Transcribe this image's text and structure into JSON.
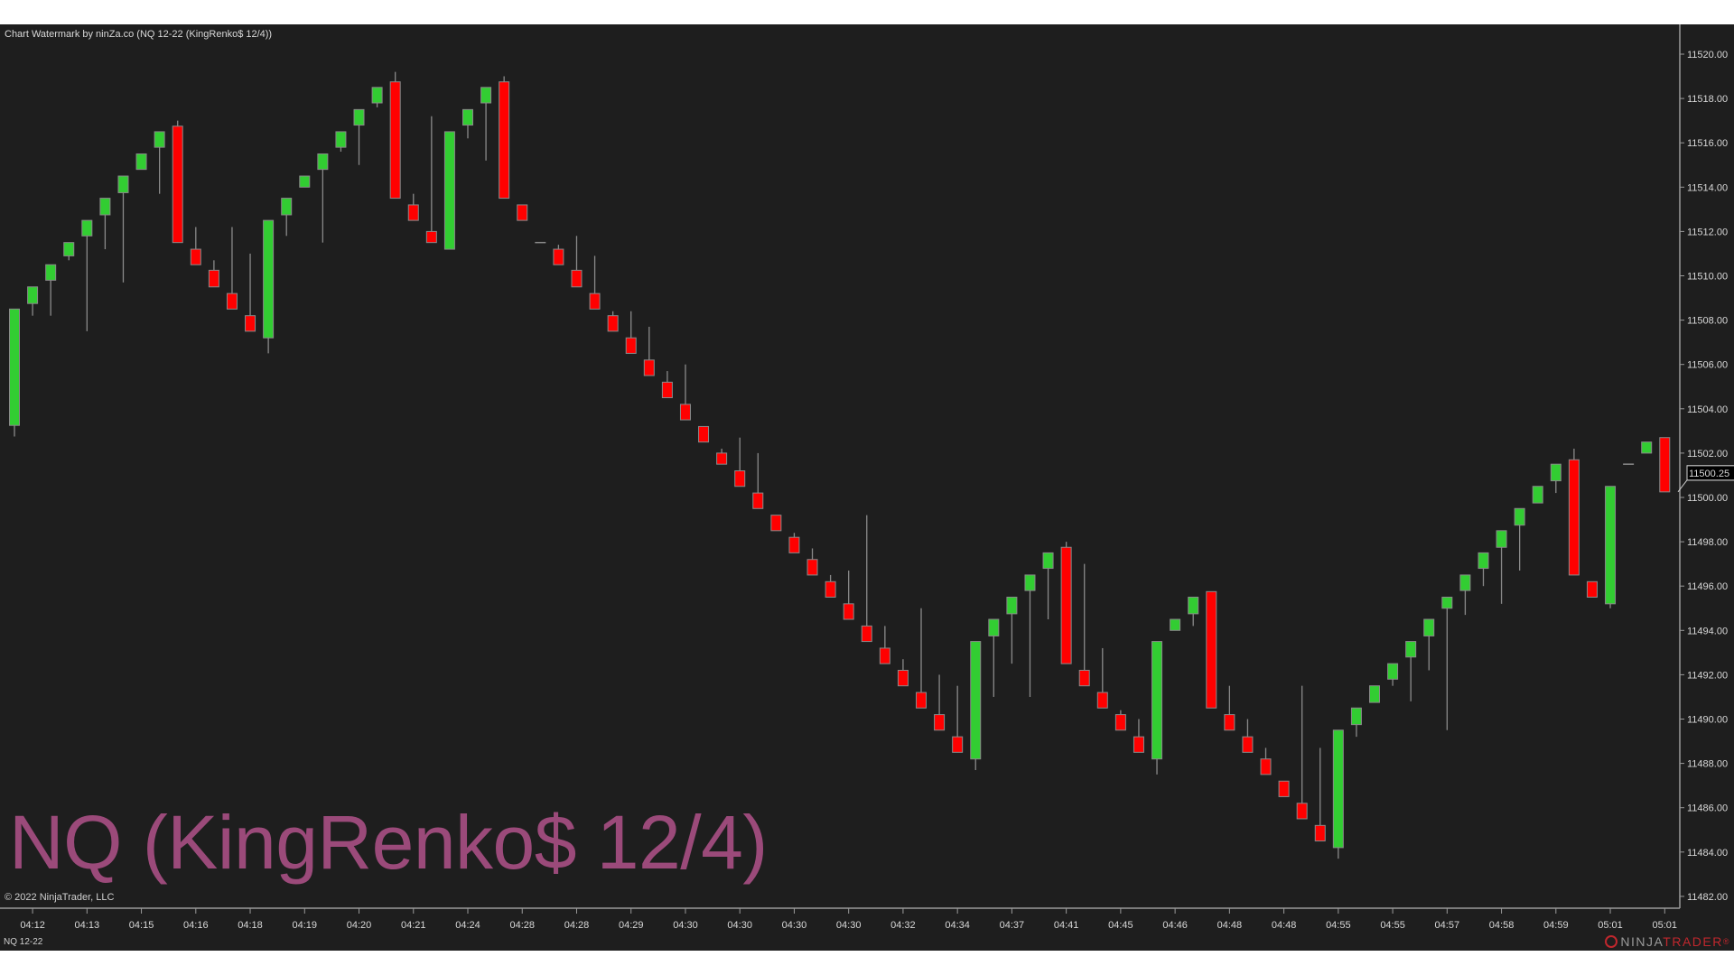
{
  "window": {
    "title": "Chart Watermark by ninZa.co (NQ 12-22 (KingRenko$ 12/4))"
  },
  "watermark": {
    "text": "NQ (KingRenko$ 12/4)",
    "color": "#9b4a7a"
  },
  "footer": {
    "copyright": "© 2022 NinjaTrader, LLC",
    "instrument": "NQ 12-22",
    "logo_left": "NINJA",
    "logo_right": "TRADER",
    "logo_reg": "®"
  },
  "colors": {
    "background": "#1e1e1e",
    "up": "#32cd32",
    "down": "#ff0000",
    "wick": "#8a8a8a"
  },
  "chart_data": {
    "type": "candlestick",
    "price_axis": {
      "ticks": [
        "11520.00",
        "11518.00",
        "11516.00",
        "11514.00",
        "11512.00",
        "11510.00",
        "11508.00",
        "11506.00",
        "11504.00",
        "11502.00",
        "11500.00",
        "11498.00",
        "11496.00",
        "11494.00",
        "11492.00",
        "11490.00",
        "11488.00",
        "11486.00",
        "11484.00",
        "11482.00"
      ],
      "range": [
        11481.5,
        11521.5
      ]
    },
    "current_price": "11500.25",
    "time_labels": [
      "04:12",
      "04:13",
      "04:15",
      "04:16",
      "04:18",
      "04:19",
      "04:20",
      "04:21",
      "04:24",
      "04:28",
      "04:28",
      "04:29",
      "04:30",
      "04:30",
      "04:30",
      "04:30",
      "04:32",
      "04:34",
      "04:37",
      "04:41",
      "04:45",
      "04:46",
      "04:48",
      "04:48",
      "04:55",
      "04:55",
      "04:57",
      "04:58",
      "04:59",
      "05:01",
      "05:01"
    ],
    "candles_ohlc": [
      [
        11503.25,
        11508.5,
        11502.75,
        11508.5
      ],
      [
        11508.75,
        11509.5,
        11508.2,
        11509.5
      ],
      [
        11509.8,
        11510.5,
        11508.2,
        11510.5
      ],
      [
        11510.9,
        11511.5,
        11510.7,
        11511.5
      ],
      [
        11511.8,
        11512.5,
        11507.5,
        11512.5
      ],
      [
        11512.75,
        11513.5,
        11511.2,
        11513.5
      ],
      [
        11513.75,
        11514.5,
        11509.7,
        11514.5
      ],
      [
        11514.8,
        11515.5,
        11514.8,
        11515.5
      ],
      [
        11515.8,
        11516.5,
        11513.7,
        11516.5
      ],
      [
        11516.75,
        11517,
        11511.5,
        11511.5
      ],
      [
        11511.2,
        11512.2,
        11510.5,
        11510.5
      ],
      [
        11510.25,
        11510.7,
        11509.5,
        11509.5
      ],
      [
        11509.2,
        11512.2,
        11508.5,
        11508.5
      ],
      [
        11508.2,
        11511,
        11507.5,
        11507.5
      ],
      [
        11507.2,
        11512.5,
        11506.5,
        11512.5
      ],
      [
        11512.75,
        11513.5,
        11511.8,
        11513.5
      ],
      [
        11514,
        11514.5,
        11514,
        11514.5
      ],
      [
        11514.8,
        11515.5,
        11511.5,
        11515.5
      ],
      [
        11515.8,
        11516.5,
        11515.6,
        11516.5
      ],
      [
        11516.8,
        11517.5,
        11515,
        11517.5
      ],
      [
        11517.8,
        11518.5,
        11517.6,
        11518.5
      ],
      [
        11518.75,
        11519.2,
        11513.5,
        11513.5
      ],
      [
        11513.2,
        11513.7,
        11512.5,
        11512.5
      ],
      [
        11512,
        11517.2,
        11511.5,
        11511.5
      ],
      [
        11511.2,
        11516.5,
        11511.2,
        11516.5
      ],
      [
        11516.8,
        11517.5,
        11516.2,
        11517.5
      ],
      [
        11517.8,
        11518.5,
        11515.2,
        11518.5
      ],
      [
        11518.75,
        11519,
        11513.5,
        11513.5
      ],
      [
        11513.2,
        11513.2,
        11512.5,
        11512.5
      ],
      [
        11511.5,
        11511.5,
        11511.5,
        11511.5
      ],
      [
        11511.2,
        11511.4,
        11510.5,
        11510.5
      ],
      [
        11510.25,
        11511.8,
        11509.5,
        11509.5
      ],
      [
        11509.2,
        11510.9,
        11508.5,
        11508.5
      ],
      [
        11508.2,
        11508.4,
        11507.5,
        11507.5
      ],
      [
        11507.2,
        11508.4,
        11506.5,
        11506.5
      ],
      [
        11506.2,
        11507.7,
        11505.5,
        11505.5
      ],
      [
        11505.2,
        11505.7,
        11504.5,
        11504.5
      ],
      [
        11504.2,
        11506,
        11503.5,
        11503.5
      ],
      [
        11503.2,
        11503.2,
        11502.5,
        11502.5
      ],
      [
        11502,
        11502.2,
        11501.5,
        11501.5
      ],
      [
        11501.2,
        11502.7,
        11500.5,
        11500.5
      ],
      [
        11500.2,
        11502,
        11499.5,
        11499.5
      ],
      [
        11499.2,
        11499.2,
        11498.5,
        11498.5
      ],
      [
        11498.2,
        11498.4,
        11497.5,
        11497.5
      ],
      [
        11497.2,
        11497.7,
        11496.5,
        11496.5
      ],
      [
        11496.2,
        11496.5,
        11495.5,
        11495.5
      ],
      [
        11495.2,
        11496.7,
        11494.5,
        11494.5
      ],
      [
        11494.2,
        11499.2,
        11493.5,
        11493.5
      ],
      [
        11493.2,
        11494.2,
        11492.5,
        11492.5
      ],
      [
        11492.2,
        11492.7,
        11491.5,
        11491.5
      ],
      [
        11491.2,
        11495,
        11490.5,
        11490.5
      ],
      [
        11490.2,
        11492,
        11489.5,
        11489.5
      ],
      [
        11489.2,
        11491.5,
        11488.5,
        11488.5
      ],
      [
        11488.2,
        11493.5,
        11487.7,
        11493.5
      ],
      [
        11493.75,
        11494.5,
        11491,
        11494.5
      ],
      [
        11494.75,
        11495.5,
        11492.5,
        11495.5
      ],
      [
        11495.8,
        11496.5,
        11491,
        11496.5
      ],
      [
        11496.8,
        11497.5,
        11494.5,
        11497.5
      ],
      [
        11497.75,
        11498,
        11492.5,
        11492.5
      ],
      [
        11492.2,
        11497,
        11491.5,
        11491.5
      ],
      [
        11491.2,
        11493.2,
        11490.5,
        11490.5
      ],
      [
        11490.2,
        11490.4,
        11489.5,
        11489.5
      ],
      [
        11489.2,
        11490,
        11488.5,
        11488.5
      ],
      [
        11488.2,
        11493.5,
        11487.5,
        11493.5
      ],
      [
        11494,
        11494.5,
        11494,
        11494.5
      ],
      [
        11494.75,
        11495.5,
        11494.2,
        11495.5
      ],
      [
        11495.75,
        11495.75,
        11490.5,
        11490.5
      ],
      [
        11490.2,
        11491.5,
        11489.5,
        11489.5
      ],
      [
        11489.2,
        11490,
        11488.5,
        11488.5
      ],
      [
        11488.2,
        11488.7,
        11487.5,
        11487.5
      ],
      [
        11487.2,
        11487.2,
        11486.5,
        11486.5
      ],
      [
        11486.2,
        11491.5,
        11485.5,
        11485.5
      ],
      [
        11485.2,
        11488.7,
        11484.5,
        11484.5
      ],
      [
        11484.2,
        11489.5,
        11483.7,
        11489.5
      ],
      [
        11489.75,
        11490.5,
        11489.2,
        11490.5
      ],
      [
        11490.75,
        11491.5,
        11490.75,
        11491.5
      ],
      [
        11491.8,
        11492.5,
        11491.5,
        11492.5
      ],
      [
        11492.8,
        11493.5,
        11490.8,
        11493.5
      ],
      [
        11493.75,
        11494.5,
        11492.2,
        11494.5
      ],
      [
        11495,
        11495.5,
        11489.5,
        11495.5
      ],
      [
        11495.8,
        11496.5,
        11494.7,
        11496.5
      ],
      [
        11496.8,
        11497.5,
        11496,
        11497.5
      ],
      [
        11497.75,
        11498.5,
        11495.2,
        11498.5
      ],
      [
        11498.75,
        11499.5,
        11496.7,
        11499.5
      ],
      [
        11499.75,
        11500.5,
        11499.75,
        11500.5
      ],
      [
        11500.75,
        11501.5,
        11500.2,
        11501.5
      ],
      [
        11501.7,
        11502.2,
        11496.5,
        11496.5
      ],
      [
        11496.2,
        11496.2,
        11495.5,
        11495.5
      ],
      [
        11495.2,
        11500.5,
        11495,
        11500.5
      ],
      [
        11501.5,
        11501.5,
        11501.5,
        11501.5
      ],
      [
        11502,
        11502.5,
        11502,
        11502.5
      ],
      [
        11502.7,
        11502.7,
        11500.25,
        11500.25
      ]
    ]
  }
}
